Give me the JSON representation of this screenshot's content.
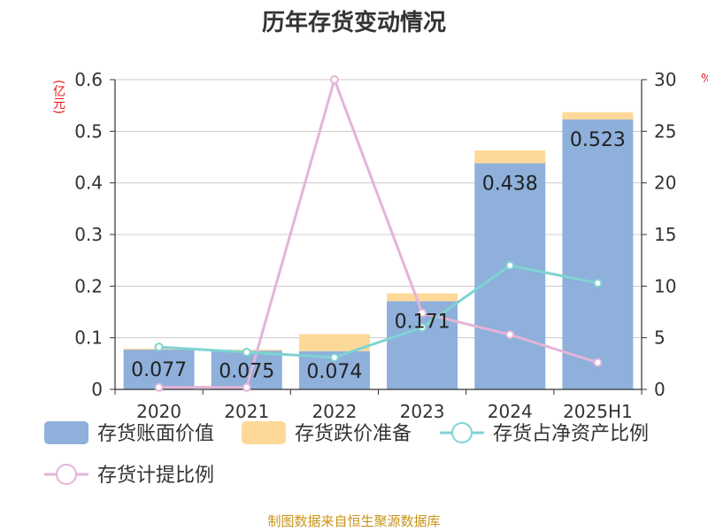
{
  "title": "历年存货变动情况",
  "unit_left": "(亿元)",
  "unit_right": "%",
  "source": "制图数据来自恒生聚源数据库",
  "colors": {
    "bar_book": "#8eb0db",
    "bar_reserve": "#fdd999",
    "line_ratio_net": "#7fd3d3",
    "line_ratio_provision": "#e4b4d9",
    "axis": "#333333",
    "grid": "#cccccc",
    "text": "#333333"
  },
  "chart_data": {
    "type": "bar",
    "categories": [
      "2020",
      "2021",
      "2022",
      "2023",
      "2024",
      "2025H1"
    ],
    "ylim_left": [
      0,
      0.6
    ],
    "yticks_left": [
      "0",
      "0.1",
      "0.2",
      "0.3",
      "0.4",
      "0.5",
      "0.6"
    ],
    "ylim_right": [
      0,
      30
    ],
    "yticks_right": [
      "0",
      "5",
      "10",
      "15",
      "20",
      "25",
      "30"
    ],
    "grid": true,
    "legend_position": "bottom",
    "series": [
      {
        "name": "存货账面价值",
        "kind": "bar",
        "axis": "left",
        "values": [
          0.077,
          0.075,
          0.074,
          0.171,
          0.438,
          0.523
        ],
        "labels": [
          "0.077",
          "0.075",
          "0.074",
          "0.171",
          "0.438",
          "0.523"
        ]
      },
      {
        "name": "存货跌价准备",
        "kind": "bar-stack",
        "axis": "left",
        "values": [
          0.002,
          0.002,
          0.033,
          0.015,
          0.025,
          0.014
        ]
      },
      {
        "name": "存货占净资产比例",
        "kind": "line",
        "axis": "right",
        "values": [
          4.1,
          3.6,
          3.1,
          6.0,
          12.0,
          10.3
        ]
      },
      {
        "name": "存货计提比例",
        "kind": "line",
        "axis": "right",
        "values": [
          0.2,
          0.2,
          30.0,
          7.4,
          5.3,
          2.6
        ]
      }
    ]
  }
}
